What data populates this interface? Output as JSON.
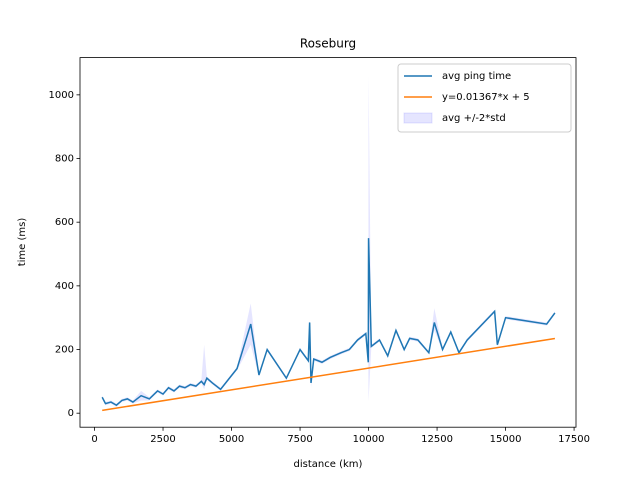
{
  "chart_data": {
    "type": "line",
    "title": "Roseburg",
    "xlabel": "distance (km)",
    "ylabel": "time (ms)",
    "xlim": [
      -530,
      17570
    ],
    "ylim": [
      -44,
      1117
    ],
    "xticks": [
      0,
      2500,
      5000,
      7500,
      10000,
      12500,
      15000,
      17500
    ],
    "yticks": [
      0,
      200,
      400,
      600,
      800,
      1000
    ],
    "legend": "upper right",
    "series": [
      {
        "name": "avg ping time",
        "color": "#1f77b4",
        "x": [
          280,
          400,
          600,
          800,
          1000,
          1200,
          1400,
          1700,
          2000,
          2300,
          2500,
          2700,
          2900,
          3100,
          3300,
          3500,
          3700,
          3900,
          4000,
          4100,
          4300,
          4600,
          5200,
          5700,
          6000,
          6300,
          7000,
          7500,
          7800,
          7850,
          7900,
          8000,
          8300,
          8600,
          9000,
          9300,
          9600,
          9900,
          9990,
          10000,
          10100,
          10400,
          10700,
          11000,
          11300,
          11500,
          11800,
          12200,
          12400,
          12700,
          13000,
          13300,
          13600,
          14600,
          14700,
          15000,
          16500,
          16800
        ],
        "values": [
          50,
          30,
          35,
          25,
          40,
          45,
          35,
          55,
          45,
          70,
          60,
          80,
          70,
          85,
          80,
          90,
          85,
          100,
          90,
          110,
          95,
          75,
          140,
          280,
          120,
          200,
          110,
          200,
          165,
          285,
          95,
          170,
          160,
          175,
          190,
          200,
          230,
          250,
          160,
          550,
          210,
          230,
          180,
          260,
          200,
          235,
          230,
          190,
          285,
          200,
          255,
          190,
          230,
          320,
          215,
          300,
          280,
          315
        ]
      },
      {
        "name": "y=0.01367*x + 5",
        "color": "#ff7f0e",
        "x": [
          280,
          16800
        ],
        "values": [
          8.83,
          234.66
        ]
      }
    ],
    "band": {
      "name": "avg +/-2*std",
      "color": "#0000ff",
      "upper": [
        55,
        35,
        40,
        30,
        45,
        50,
        40,
        70,
        50,
        75,
        65,
        85,
        75,
        90,
        85,
        95,
        90,
        105,
        215,
        115,
        100,
        80,
        145,
        345,
        125,
        205,
        115,
        205,
        170,
        290,
        110,
        175,
        165,
        180,
        195,
        205,
        235,
        255,
        165,
        1063,
        215,
        235,
        185,
        265,
        205,
        240,
        235,
        195,
        330,
        205,
        260,
        195,
        235,
        325,
        220,
        305,
        285,
        320
      ],
      "lower": [
        45,
        25,
        30,
        20,
        35,
        40,
        30,
        40,
        40,
        65,
        55,
        75,
        65,
        80,
        75,
        85,
        80,
        95,
        75,
        105,
        90,
        70,
        135,
        215,
        115,
        195,
        105,
        195,
        160,
        280,
        80,
        165,
        155,
        170,
        185,
        195,
        225,
        245,
        155,
        37,
        205,
        225,
        175,
        255,
        195,
        230,
        225,
        185,
        260,
        195,
        250,
        185,
        225,
        315,
        210,
        295,
        275,
        310
      ]
    }
  }
}
